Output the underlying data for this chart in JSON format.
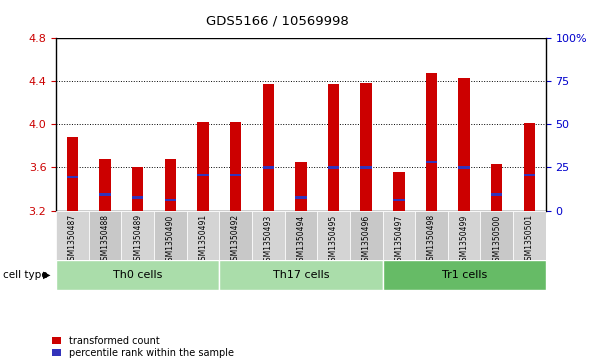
{
  "title": "GDS5166 / 10569998",
  "samples": [
    "GSM1350487",
    "GSM1350488",
    "GSM1350489",
    "GSM1350490",
    "GSM1350491",
    "GSM1350492",
    "GSM1350493",
    "GSM1350494",
    "GSM1350495",
    "GSM1350496",
    "GSM1350497",
    "GSM1350498",
    "GSM1350499",
    "GSM1350500",
    "GSM1350501"
  ],
  "bar_heights": [
    3.88,
    3.68,
    3.6,
    3.68,
    4.02,
    4.02,
    4.37,
    3.65,
    4.37,
    4.38,
    3.56,
    4.48,
    4.43,
    3.63,
    4.01
  ],
  "blue_positions": [
    3.51,
    3.35,
    3.32,
    3.3,
    3.53,
    3.53,
    3.6,
    3.32,
    3.6,
    3.6,
    3.3,
    3.65,
    3.6,
    3.35,
    3.53
  ],
  "ylim_left": [
    3.2,
    4.8
  ],
  "yticks_left": [
    3.2,
    3.6,
    4.0,
    4.4,
    4.8
  ],
  "yticks_right": [
    0,
    25,
    50,
    75,
    100
  ],
  "bar_color": "#CC0000",
  "blue_color": "#3333BB",
  "bar_width": 0.35,
  "base_value": 3.2,
  "cell_groups": [
    {
      "label": "Th0 cells",
      "start": 0,
      "end": 4,
      "light": true
    },
    {
      "label": "Th17 cells",
      "start": 5,
      "end": 9,
      "light": true
    },
    {
      "label": "Tr1 cells",
      "start": 10,
      "end": 14,
      "light": false
    }
  ],
  "cell_light_color": "#AADDAA",
  "cell_dark_color": "#66BB66",
  "xtick_bg_even": "#D4D4D4",
  "xtick_bg_odd": "#C8C8C8",
  "plot_bg": "#FFFFFF"
}
